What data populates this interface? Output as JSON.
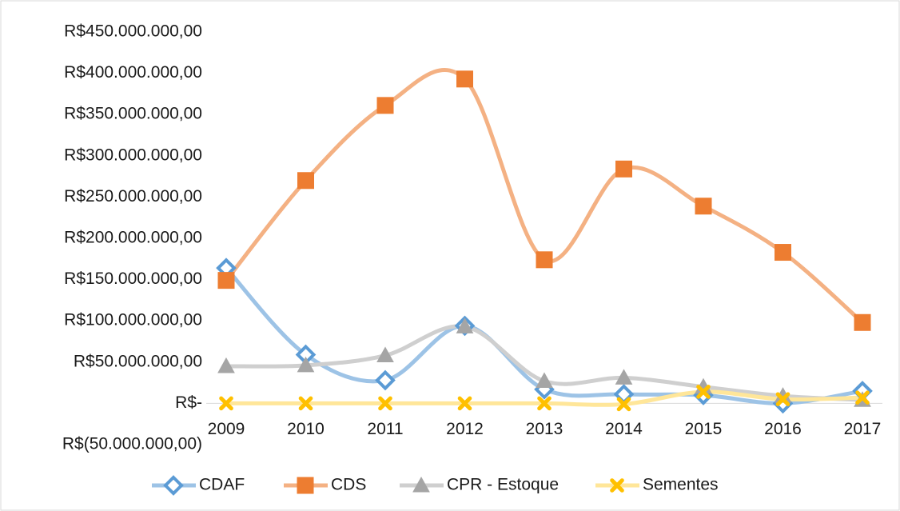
{
  "chart_data": {
    "type": "line",
    "categories": [
      "2009",
      "2010",
      "2011",
      "2012",
      "2013",
      "2014",
      "2015",
      "2016",
      "2017"
    ],
    "series": [
      {
        "name": "CDAF",
        "color": "#5b9bd5",
        "line_color": "#9dc3e6",
        "marker": "diamond",
        "values": [
          164000000,
          59000000,
          28000000,
          94000000,
          17000000,
          11000000,
          10000000,
          0,
          15000000
        ]
      },
      {
        "name": "CDS",
        "color": "#ed7d31",
        "line_color": "#f4b183",
        "marker": "square",
        "values": [
          149000000,
          270000000,
          361000000,
          393000000,
          174000000,
          284000000,
          239000000,
          183000000,
          98000000
        ]
      },
      {
        "name": "CPR - Estoque",
        "color": "#a5a5a5",
        "line_color": "#cfcfcf",
        "marker": "triangle",
        "values": [
          45000000,
          46000000,
          58000000,
          93000000,
          27000000,
          31000000,
          20000000,
          9000000,
          4000000
        ]
      },
      {
        "name": "Sementes",
        "color": "#ffc000",
        "line_color": "#ffe699",
        "marker": "x",
        "values": [
          0,
          0,
          0,
          0,
          0,
          -1000000,
          14000000,
          5000000,
          7000000
        ]
      }
    ],
    "ylim": [
      -50000000,
      450000000
    ],
    "yticks": [
      {
        "value": -50000000,
        "label": "R$(50.000.000,00)"
      },
      {
        "value": 0,
        "label": "R$-"
      },
      {
        "value": 50000000,
        "label": "R$50.000.000,00"
      },
      {
        "value": 100000000,
        "label": "R$100.000.000,00"
      },
      {
        "value": 150000000,
        "label": "R$150.000.000,00"
      },
      {
        "value": 200000000,
        "label": "R$200.000.000,00"
      },
      {
        "value": 250000000,
        "label": "R$250.000.000,00"
      },
      {
        "value": 300000000,
        "label": "R$300.000.000,00"
      },
      {
        "value": 350000000,
        "label": "R$350.000.000,00"
      },
      {
        "value": 400000000,
        "label": "R$400.000.000,00"
      },
      {
        "value": 450000000,
        "label": "R$450.000.000,00"
      }
    ],
    "grid": false,
    "smooth": true,
    "legend": "bottom"
  }
}
